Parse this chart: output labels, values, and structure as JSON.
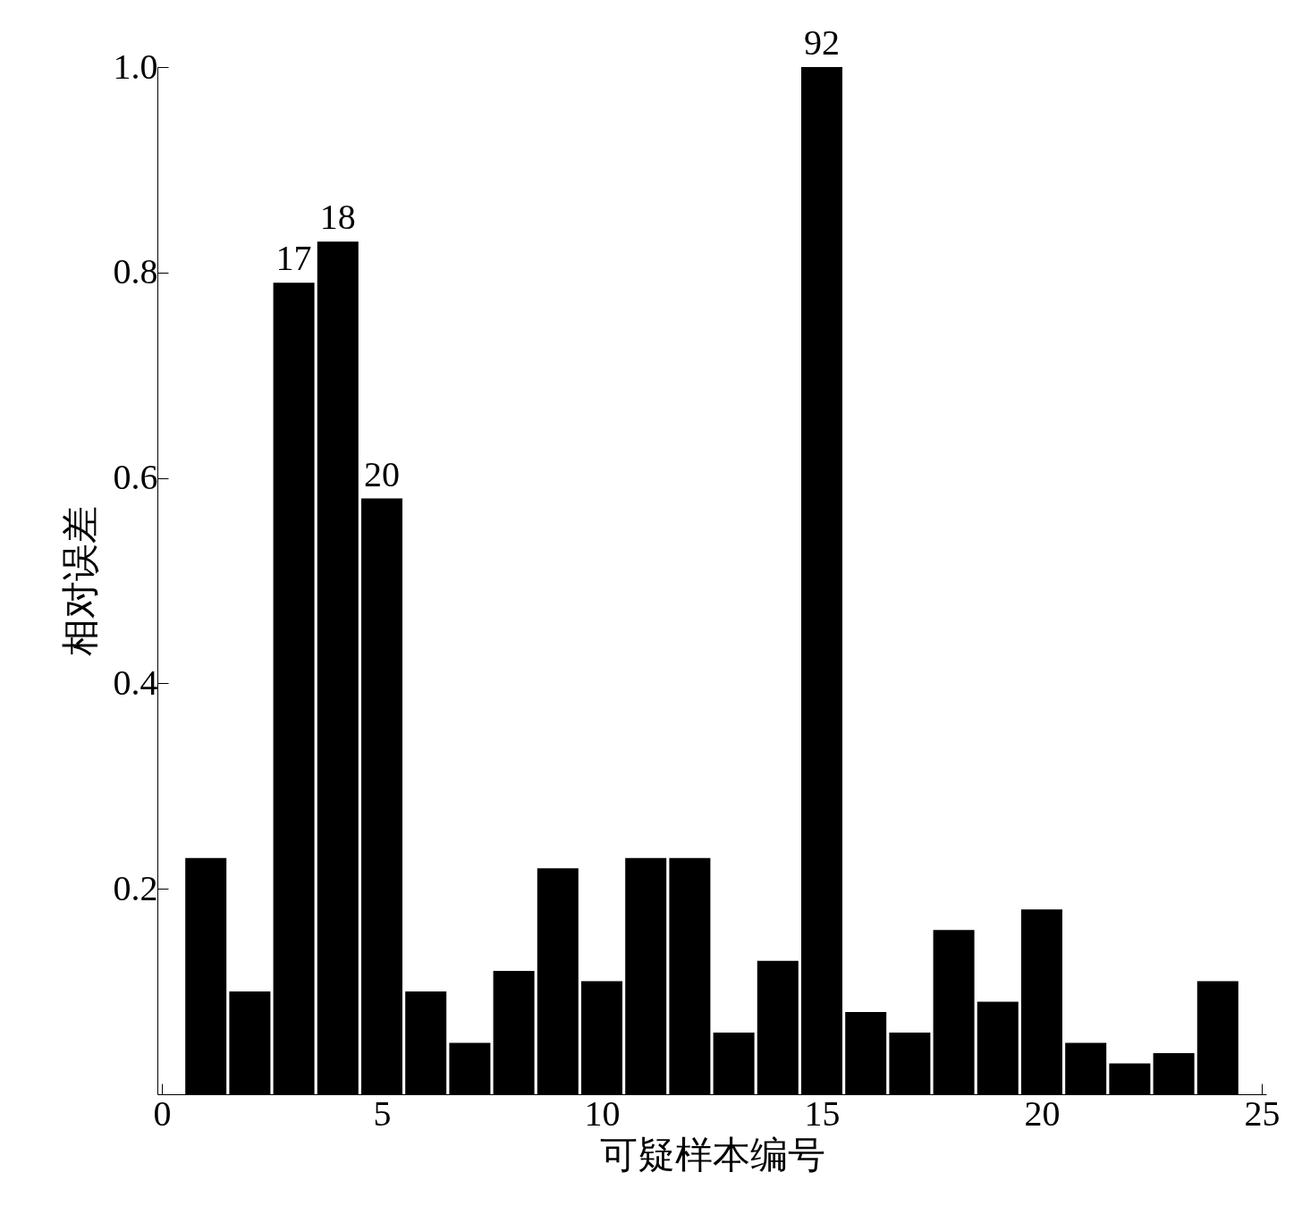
{
  "chart_data": {
    "type": "bar",
    "xlabel": "可疑样本编号",
    "ylabel": "相对误差",
    "x": [
      1,
      2,
      3,
      4,
      5,
      6,
      7,
      8,
      9,
      10,
      11,
      12,
      13,
      14,
      15,
      16,
      17,
      18,
      19,
      20,
      21,
      22,
      23,
      24
    ],
    "values": [
      0.23,
      0.1,
      0.79,
      0.83,
      0.58,
      0.1,
      0.05,
      0.12,
      0.22,
      0.11,
      0.23,
      0.23,
      0.06,
      0.13,
      1.0,
      0.08,
      0.06,
      0.16,
      0.09,
      0.18,
      0.05,
      0.03,
      0.04,
      0.11
    ],
    "color": "#000000",
    "xlim": [
      0,
      25
    ],
    "xticks": [
      0,
      5,
      10,
      15,
      20,
      25
    ],
    "ylim": [
      0,
      1
    ],
    "yticks": [
      0.2,
      0.4,
      0.6,
      0.8,
      {
        "value": 1,
        "label": "1.0"
      }
    ],
    "grid": false,
    "annotations": [
      {
        "text": "17",
        "x": 3,
        "y": 0.79
      },
      {
        "text": "18",
        "x": 4,
        "y": 0.83
      },
      {
        "text": "20",
        "x": 5,
        "y": 0.58
      },
      {
        "text": "92",
        "x": 15,
        "y": 1.0
      }
    ]
  }
}
